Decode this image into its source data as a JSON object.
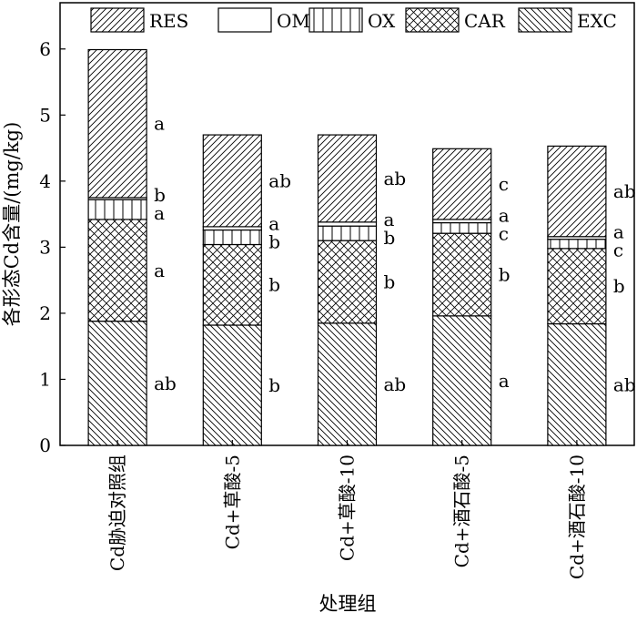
{
  "chart_data": {
    "type": "bar",
    "stacked": true,
    "categories": [
      "Cd胁迫对照组",
      "Cd+草酸-5",
      "Cd+草酸-10",
      "Cd+酒石酸-5",
      "Cd+酒石酸-10"
    ],
    "series": [
      {
        "name": "EXC",
        "pattern": "diag-down",
        "values": [
          1.88,
          1.82,
          1.85,
          1.96,
          1.84
        ],
        "labels": [
          "ab",
          "b",
          "ab",
          "a",
          "ab"
        ]
      },
      {
        "name": "CAR",
        "pattern": "crosshatch",
        "values": [
          1.54,
          1.22,
          1.25,
          1.25,
          1.14
        ],
        "labels": [
          "a",
          "b",
          "b",
          "b",
          "b"
        ]
      },
      {
        "name": "OX",
        "pattern": "vertical",
        "values": [
          0.3,
          0.22,
          0.22,
          0.16,
          0.14
        ],
        "labels": [
          "a",
          "b",
          "b",
          "c",
          "c"
        ]
      },
      {
        "name": "OM",
        "pattern": "blank",
        "values": [
          0.03,
          0.05,
          0.06,
          0.05,
          0.04
        ],
        "labels": [
          "b",
          "a",
          "a",
          "a",
          "a"
        ]
      },
      {
        "name": "RES",
        "pattern": "diag-up",
        "values": [
          2.24,
          1.39,
          1.32,
          1.07,
          1.37
        ],
        "labels": [
          "a",
          "ab",
          "ab",
          "c",
          "ab"
        ]
      }
    ],
    "legend_order": [
      "RES",
      "OM",
      "OX",
      "CAR",
      "EXC"
    ],
    "legend_position": "top",
    "xlabel": "处理组",
    "ylabel": "各形态Cd含量/(mg/kg)",
    "ylim": [
      0,
      6.7
    ],
    "yticks": [
      0,
      1,
      2,
      3,
      4,
      5,
      6
    ],
    "grid": false
  }
}
